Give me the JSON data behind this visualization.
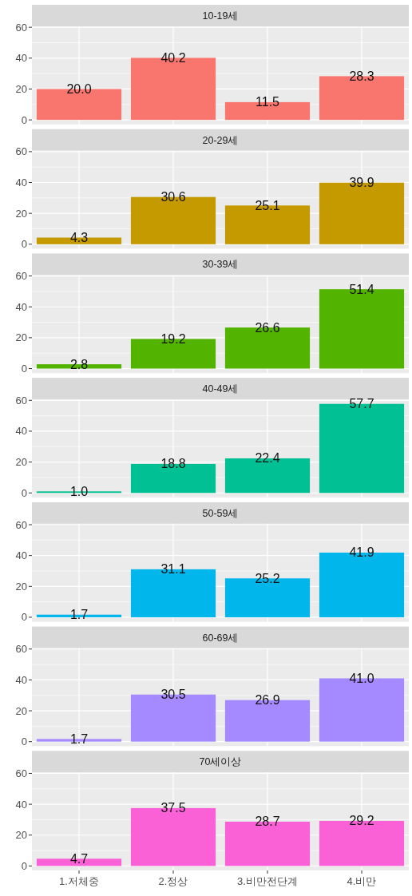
{
  "chart_data": [
    {
      "type": "bar",
      "title": "10-19세",
      "categories": [
        null,
        null,
        null,
        null
      ],
      "values": [
        20.0,
        40.2,
        11.5,
        28.3
      ],
      "value_labels": [
        "20.0",
        "40.2",
        "11.5",
        "28.3"
      ],
      "color": "#f8766d",
      "ylim": [
        -2.9,
        60.6
      ],
      "yticks": [
        0,
        20,
        40,
        60
      ],
      "grid": true,
      "tick_labels": "y"
    },
    {
      "type": "bar",
      "title": "20-29세",
      "categories": [
        null,
        null,
        null,
        null
      ],
      "values": [
        4.3,
        30.6,
        25.1,
        39.9
      ],
      "value_labels": [
        "4.3",
        "30.6",
        "25.1",
        "39.9"
      ],
      "color": "#c49a00",
      "ylim": [
        -2.9,
        60.6
      ],
      "yticks": [
        0,
        20,
        40,
        60
      ],
      "grid": true,
      "tick_labels": "y"
    },
    {
      "type": "bar",
      "title": "30-39세",
      "categories": [
        null,
        null,
        null,
        null
      ],
      "values": [
        2.8,
        19.2,
        26.6,
        51.4
      ],
      "value_labels": [
        "2.8",
        "19.2",
        "26.6",
        "51.4"
      ],
      "color": "#53b400",
      "ylim": [
        -2.9,
        60.6
      ],
      "yticks": [
        0,
        20,
        40,
        60
      ],
      "grid": true,
      "tick_labels": "y"
    },
    {
      "type": "bar",
      "title": "40-49세",
      "categories": [
        null,
        null,
        null,
        null
      ],
      "values": [
        1.0,
        18.8,
        22.4,
        57.7
      ],
      "value_labels": [
        "1.0",
        "18.8",
        "22.4",
        "57.7"
      ],
      "color": "#00c094",
      "ylim": [
        -2.9,
        60.6
      ],
      "yticks": [
        0,
        20,
        40,
        60
      ],
      "grid": true,
      "tick_labels": "y"
    },
    {
      "type": "bar",
      "title": "50-59세",
      "categories": [
        null,
        null,
        null,
        null
      ],
      "values": [
        1.7,
        31.1,
        25.2,
        41.9
      ],
      "value_labels": [
        "1.7",
        "31.1",
        "25.2",
        "41.9"
      ],
      "color": "#00b6eb",
      "ylim": [
        -2.9,
        60.6
      ],
      "yticks": [
        0,
        20,
        40,
        60
      ],
      "grid": true,
      "tick_labels": "y"
    },
    {
      "type": "bar",
      "title": "60-69세",
      "categories": [
        null,
        null,
        null,
        null
      ],
      "values": [
        1.7,
        30.5,
        26.9,
        41.0
      ],
      "value_labels": [
        "1.7",
        "30.5",
        "26.9",
        "41.0"
      ],
      "color": "#a58aff",
      "ylim": [
        -2.9,
        60.6
      ],
      "yticks": [
        0,
        20,
        40,
        60
      ],
      "grid": true,
      "tick_labels": "y"
    },
    {
      "type": "bar",
      "title": "70세이상",
      "categories": [
        "1.저체중",
        "2.정상",
        "3.비만전단계",
        "4.비만"
      ],
      "values": [
        4.7,
        37.5,
        28.7,
        29.2
      ],
      "value_labels": [
        "4.7",
        "37.5",
        "28.7",
        "29.2"
      ],
      "color": "#fb61d7",
      "ylim": [
        -2.9,
        60.6
      ],
      "yticks": [
        0,
        20,
        40,
        60
      ],
      "grid": true
    }
  ]
}
